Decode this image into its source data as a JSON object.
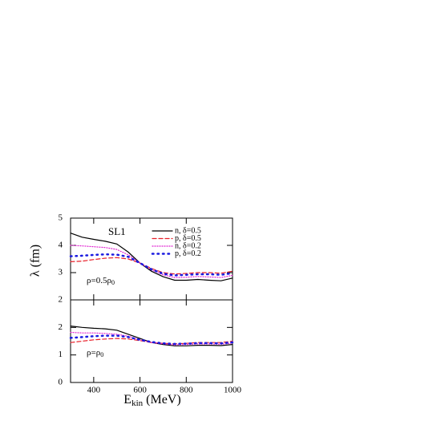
{
  "chart_data": [
    {
      "type": "line",
      "ylabel": "λ (fm)",
      "annotations": [
        {
          "text": "SL1"
        },
        {
          "text": "ρ=0.5ρ",
          "sub": "0"
        }
      ],
      "x": [
        300,
        350,
        400,
        450,
        500,
        550,
        600,
        650,
        700,
        750,
        800,
        850,
        900,
        950,
        1000
      ],
      "xlim": [
        300,
        1000
      ],
      "xticks": [
        400,
        600,
        800,
        1000
      ],
      "ylim": [
        2,
        5
      ],
      "yticks": [
        2,
        3,
        4,
        5
      ],
      "series": [
        {
          "name": "n, δ=0.5",
          "color": "#000000",
          "style": "solid",
          "values": [
            4.45,
            4.3,
            4.22,
            4.15,
            4.05,
            3.75,
            3.35,
            3.05,
            2.85,
            2.72,
            2.72,
            2.75,
            2.72,
            2.7,
            2.8
          ]
        },
        {
          "name": "p, δ=0.5",
          "color": "#e8202a",
          "style": "dashed",
          "values": [
            3.4,
            3.42,
            3.48,
            3.53,
            3.55,
            3.5,
            3.35,
            3.15,
            3.0,
            2.95,
            2.97,
            3.0,
            3.0,
            2.98,
            3.05
          ]
        },
        {
          "name": "n, δ=0.2",
          "color": "#e020d0",
          "style": "dotted",
          "values": [
            4.0,
            3.98,
            3.95,
            3.92,
            3.85,
            3.65,
            3.35,
            3.1,
            2.92,
            2.82,
            2.83,
            2.86,
            2.84,
            2.82,
            2.9
          ]
        },
        {
          "name": "p, δ=0.2",
          "color": "#1a1ae0",
          "style": "bigdot",
          "values": [
            3.6,
            3.62,
            3.65,
            3.67,
            3.66,
            3.58,
            3.35,
            3.12,
            2.96,
            2.9,
            2.92,
            2.94,
            2.94,
            2.92,
            2.98
          ]
        }
      ]
    },
    {
      "type": "line",
      "xlabel": {
        "text": "E",
        "sub": "kin",
        "rest": " (MeV)"
      },
      "annotations": [
        {
          "text": "ρ=ρ",
          "sub": "0"
        }
      ],
      "x": [
        300,
        350,
        400,
        450,
        500,
        550,
        600,
        650,
        700,
        750,
        800,
        850,
        900,
        950,
        1000
      ],
      "xlim": [
        300,
        1000
      ],
      "xticks": [
        400,
        600,
        800,
        1000
      ],
      "ylim": [
        0,
        3
      ],
      "yticks": [
        0,
        1,
        2
      ],
      "series": [
        {
          "color": "#000000",
          "style": "solid",
          "values": [
            2.05,
            2.0,
            1.97,
            1.95,
            1.9,
            1.75,
            1.6,
            1.45,
            1.38,
            1.33,
            1.33,
            1.35,
            1.35,
            1.34,
            1.38
          ]
        },
        {
          "color": "#e8202a",
          "style": "dashed",
          "values": [
            1.45,
            1.5,
            1.55,
            1.58,
            1.6,
            1.58,
            1.52,
            1.45,
            1.42,
            1.4,
            1.42,
            1.45,
            1.45,
            1.45,
            1.5
          ]
        },
        {
          "color": "#e020d0",
          "style": "dotted",
          "values": [
            1.82,
            1.8,
            1.8,
            1.78,
            1.75,
            1.68,
            1.55,
            1.45,
            1.4,
            1.37,
            1.38,
            1.4,
            1.4,
            1.39,
            1.43
          ]
        },
        {
          "color": "#1a1ae0",
          "style": "bigdot",
          "values": [
            1.62,
            1.65,
            1.68,
            1.7,
            1.7,
            1.65,
            1.55,
            1.47,
            1.42,
            1.4,
            1.41,
            1.43,
            1.43,
            1.42,
            1.46
          ]
        }
      ]
    }
  ]
}
